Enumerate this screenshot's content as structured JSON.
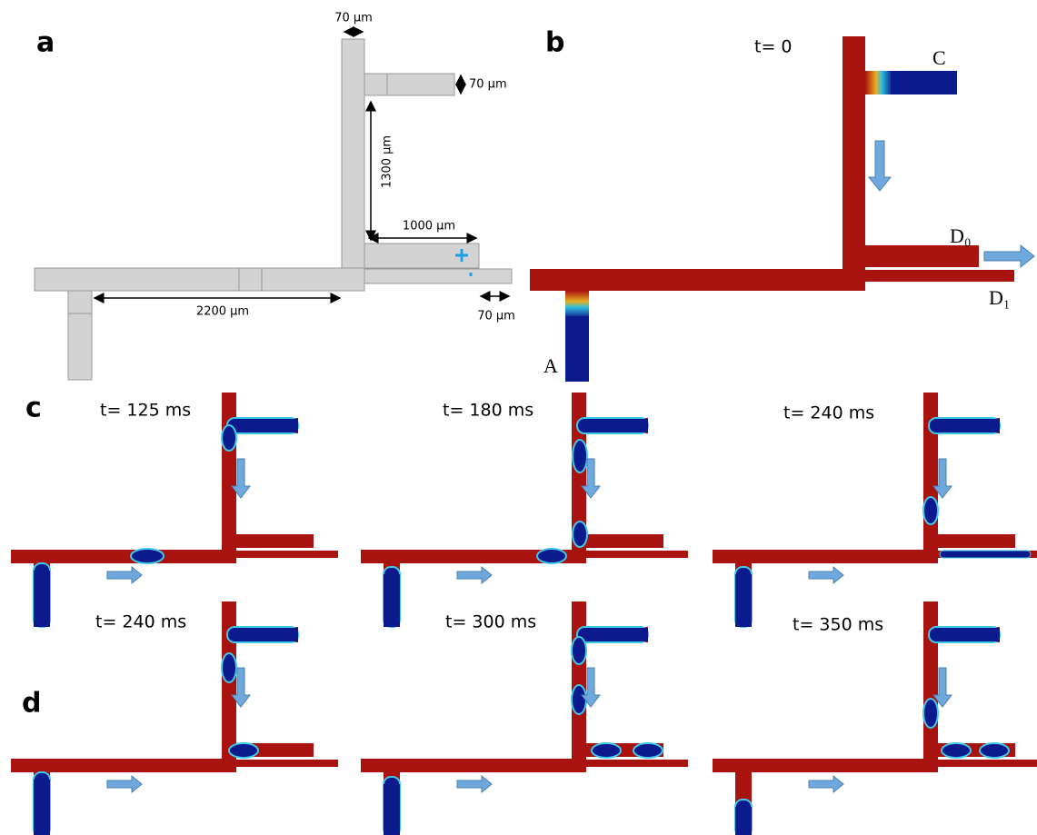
{
  "panels": {
    "a": {
      "label": "a",
      "dimensions": [
        "70 μm",
        "70 μm",
        "1300 μm",
        "1000 μm",
        "2200 μm",
        "70 μm"
      ]
    },
    "b": {
      "label": "b",
      "time": "t= 0",
      "ports": [
        "C",
        "D₀",
        "D₁",
        "A"
      ]
    },
    "c": {
      "label": "c",
      "times": [
        "t= 125 ms",
        "t= 180 ms",
        "t= 240 ms"
      ]
    },
    "d": {
      "label": "d",
      "times": [
        "t= 240 ms",
        "t= 300 ms",
        "t= 350 ms"
      ]
    }
  }
}
